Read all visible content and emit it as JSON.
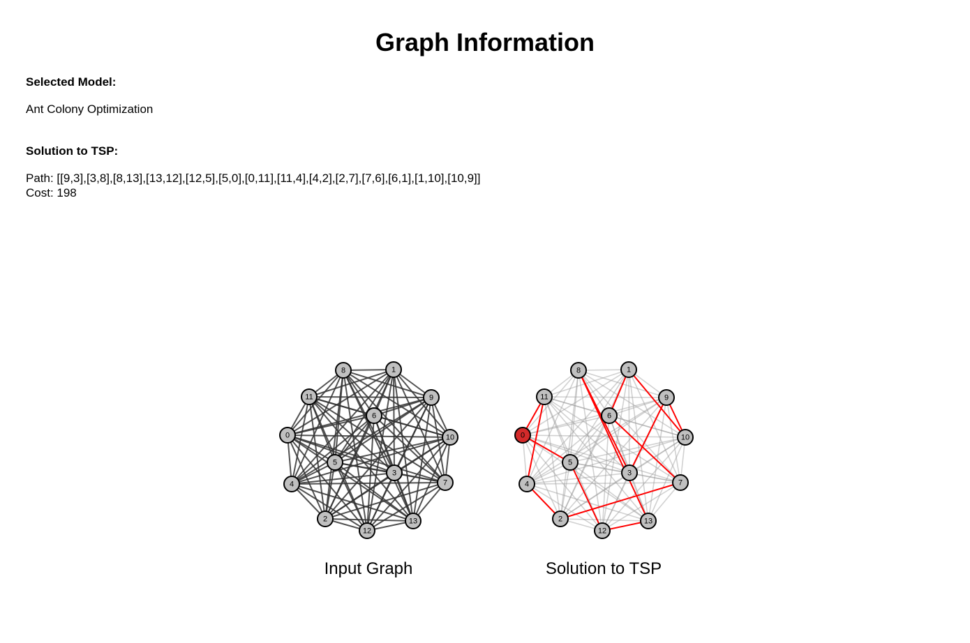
{
  "header": {
    "title": "Graph Information"
  },
  "model": {
    "label": "Selected Model:",
    "value": "Ant Colony Optimization"
  },
  "solution": {
    "label": "Solution to TSP:",
    "path_text": "Path: [[9,3],[3,8],[8,13],[13,12],[12,5],[5,0],[0,11],[11,4],[4,2],[2,7],[7,6],[6,1],[1,10],[10,9]]",
    "cost_text": "Cost: 198"
  },
  "graphs": {
    "input_caption": "Input Graph",
    "solution_caption": "Solution to TSP",
    "node_ids": [
      0,
      1,
      2,
      3,
      4,
      5,
      6,
      7,
      8,
      9,
      10,
      11,
      12,
      13
    ],
    "start_node": 0,
    "tour_edges": [
      [
        9,
        3
      ],
      [
        3,
        8
      ],
      [
        8,
        13
      ],
      [
        13,
        12
      ],
      [
        12,
        5
      ],
      [
        5,
        0
      ],
      [
        0,
        11
      ],
      [
        11,
        4
      ],
      [
        4,
        2
      ],
      [
        2,
        7
      ],
      [
        7,
        6
      ],
      [
        6,
        1
      ],
      [
        1,
        10
      ],
      [
        10,
        9
      ]
    ],
    "colors": {
      "node_fill": "#c0c0c0",
      "node_stroke": "#000000",
      "input_edge": "#333333",
      "faded_edge": "#999999",
      "tour_edge": "#ff0000",
      "start_node_fill": "#d42a2a"
    }
  }
}
